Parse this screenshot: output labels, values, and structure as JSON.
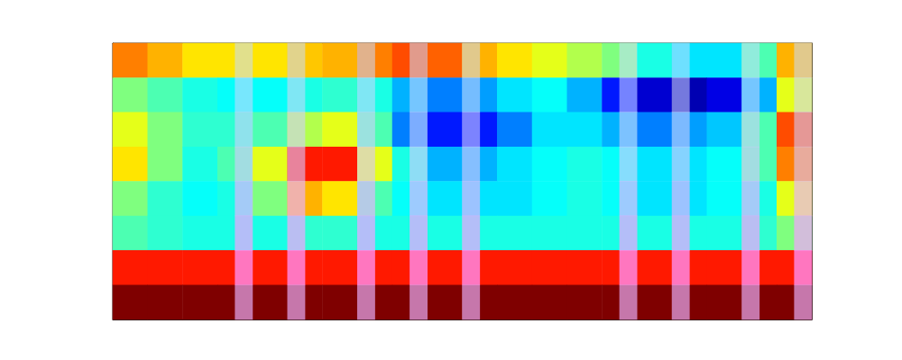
{
  "chart_data": {
    "type": "heatmap",
    "tick_labels": false,
    "color_range": [
      0,
      1
    ],
    "cells": [
      [
        0.75,
        0.7,
        0.65,
        0.65,
        0.65,
        0.68,
        0.7,
        0.75,
        0.8,
        0.78,
        0.7,
        0.65,
        0.6,
        0.55,
        0.5,
        0.4,
        0.35,
        0.35,
        0.45,
        0.7
      ],
      [
        0.5,
        0.45,
        0.4,
        0.38,
        0.38,
        0.4,
        0.42,
        0.4,
        0.3,
        0.25,
        0.28,
        0.35,
        0.38,
        0.3,
        0.15,
        0.08,
        0.05,
        0.1,
        0.3,
        0.6
      ],
      [
        0.6,
        0.5,
        0.42,
        0.42,
        0.45,
        0.55,
        0.6,
        0.45,
        0.25,
        0.15,
        0.15,
        0.25,
        0.35,
        0.35,
        0.3,
        0.25,
        0.28,
        0.32,
        0.45,
        0.8
      ],
      [
        0.65,
        0.5,
        0.4,
        0.45,
        0.6,
        0.85,
        0.85,
        0.6,
        0.4,
        0.3,
        0.3,
        0.35,
        0.38,
        0.4,
        0.38,
        0.35,
        0.35,
        0.38,
        0.45,
        0.75
      ],
      [
        0.5,
        0.42,
        0.38,
        0.4,
        0.5,
        0.7,
        0.65,
        0.45,
        0.38,
        0.35,
        0.35,
        0.35,
        0.38,
        0.4,
        0.38,
        0.35,
        0.35,
        0.38,
        0.4,
        0.6
      ],
      [
        0.45,
        0.42,
        0.4,
        0.4,
        0.4,
        0.42,
        0.42,
        0.4,
        0.4,
        0.4,
        0.4,
        0.4,
        0.4,
        0.4,
        0.4,
        0.4,
        0.4,
        0.4,
        0.42,
        0.5
      ],
      [
        0.85,
        0.85,
        0.85,
        0.85,
        0.85,
        0.85,
        0.85,
        0.85,
        0.85,
        0.85,
        0.85,
        0.85,
        0.85,
        0.85,
        0.85,
        0.85,
        0.85,
        0.85,
        0.85,
        0.85
      ],
      [
        1,
        1,
        1,
        1,
        1,
        1,
        1,
        1,
        1,
        1,
        1,
        1,
        1,
        1,
        1,
        1,
        1,
        1,
        1,
        1
      ]
    ],
    "overlay": {
      "color_range": [
        0,
        1
      ],
      "cells": [
        [
          0,
          0,
          0,
          0,
          0,
          0,
          0,
          0.5,
          0,
          0,
          0.5,
          0,
          0,
          0,
          0.5,
          0,
          0,
          0.5,
          0,
          0,
          0.5,
          0,
          0,
          0,
          0,
          0,
          0,
          0,
          0,
          0.5,
          0,
          0,
          0.5,
          0,
          0,
          0,
          0.5,
          0,
          0,
          0.5
        ],
        [
          0,
          0,
          0,
          0,
          0,
          0,
          0,
          0.55,
          0,
          0,
          0.55,
          0,
          0,
          0,
          0.55,
          0,
          0,
          0.55,
          0,
          0,
          0.55,
          0,
          0,
          0,
          0,
          0,
          0,
          0,
          0,
          0.55,
          0,
          0,
          0.55,
          0,
          0,
          0,
          0.55,
          0,
          0,
          0.55
        ],
        [
          0,
          0,
          0,
          0,
          0,
          0,
          0,
          0.6,
          0,
          0,
          0.6,
          0,
          0,
          0,
          0.6,
          0,
          0,
          0.6,
          0,
          0,
          0.6,
          0,
          0,
          0,
          0,
          0,
          0,
          0,
          0,
          0.6,
          0,
          0,
          0.6,
          0,
          0,
          0,
          0.6,
          0,
          0,
          0.6
        ],
        [
          0,
          0,
          0,
          0,
          0,
          0,
          0,
          0.65,
          0,
          0,
          0.65,
          0,
          0,
          0,
          0.65,
          0,
          0,
          0.65,
          0,
          0,
          0.65,
          0,
          0,
          0,
          0,
          0,
          0,
          0,
          0,
          0.65,
          0,
          0,
          0.65,
          0,
          0,
          0,
          0.65,
          0,
          0,
          0.65
        ],
        [
          0,
          0,
          0,
          0,
          0,
          0,
          0,
          0.8,
          0,
          0,
          0.8,
          0,
          0,
          0,
          0.8,
          0,
          0,
          0.8,
          0,
          0,
          0.8,
          0,
          0,
          0,
          0,
          0,
          0,
          0,
          0,
          0.8,
          0,
          0,
          0.8,
          0,
          0,
          0,
          0.8,
          0,
          0,
          0.8
        ],
        [
          0,
          0,
          0,
          0,
          0,
          0,
          0,
          0.9,
          0,
          0,
          0.9,
          0,
          0,
          0,
          0.9,
          0,
          0,
          0.9,
          0,
          0,
          0.9,
          0,
          0,
          0,
          0,
          0,
          0,
          0,
          0,
          0.9,
          0,
          0,
          0.9,
          0,
          0,
          0,
          0.9,
          0,
          0,
          0.9
        ],
        [
          0,
          0,
          0,
          0,
          0,
          0,
          0,
          1,
          0,
          0,
          1,
          0,
          0,
          0,
          1,
          0,
          0,
          1,
          0,
          0,
          1,
          0,
          0,
          0,
          0,
          0,
          0,
          0,
          0,
          1,
          0,
          0,
          1,
          0,
          0,
          0,
          1,
          0,
          0,
          1
        ],
        [
          0,
          0,
          0,
          0,
          0,
          0,
          0,
          0.8,
          0,
          0,
          0.8,
          0,
          0,
          0,
          0.8,
          0,
          0,
          0.8,
          0,
          0,
          0.8,
          0,
          0,
          0,
          0,
          0,
          0,
          0,
          0,
          0.8,
          0,
          0,
          0.8,
          0,
          0,
          0,
          0.8,
          0,
          0,
          0.8
        ]
      ]
    }
  }
}
